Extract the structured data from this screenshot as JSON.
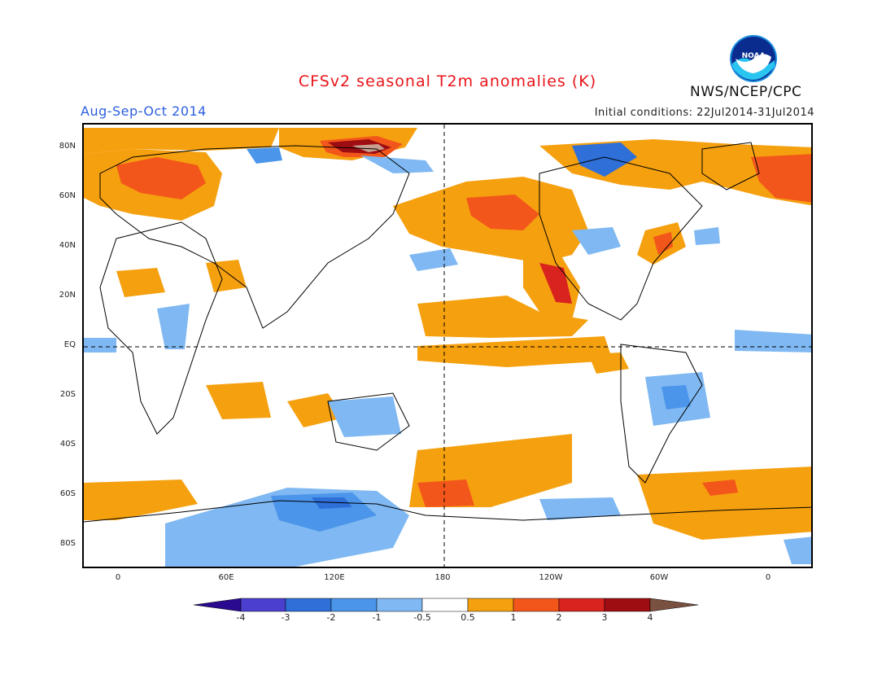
{
  "header": {
    "title": "CFSv2 seasonal T2m anomalies (K)",
    "season": "Aug-Sep-Oct 2014",
    "initial_conditions": "Initial conditions: 22Jul2014-31Jul2014",
    "agency": "NWS/NCEP/CPC",
    "logo_text": "NOAA"
  },
  "map": {
    "lat_labels": [
      "80N",
      "60N",
      "40N",
      "20N",
      "EQ",
      "20S",
      "40S",
      "60S",
      "80S"
    ],
    "lon_labels": [
      "0",
      "60E",
      "120E",
      "180",
      "120W",
      "60W",
      "0"
    ],
    "reference_lines": [
      "equator",
      "dateline"
    ]
  },
  "colorbar": {
    "labels": [
      "-4",
      "-3",
      "-2",
      "-1",
      "-0.5",
      "0.5",
      "1",
      "2",
      "3",
      "4"
    ],
    "colors": [
      "#2a0a8f",
      "#4a3fce",
      "#2e6fd8",
      "#4b95ea",
      "#7fb8f2",
      "#ffffff",
      "#f5a00f",
      "#f3561a",
      "#d8231e",
      "#9e0d12",
      "#c9a090",
      "#7a5040"
    ]
  },
  "colors": {
    "title": "#e8151a",
    "season": "#2d5fe0",
    "warm_1": "#f5a00f",
    "warm_2": "#f3561a",
    "warm_3": "#d8231e",
    "warm_4": "#9e0d12",
    "cool_1": "#7fb8f2",
    "cool_2": "#4b95ea",
    "cool_3": "#2e6fd8"
  }
}
